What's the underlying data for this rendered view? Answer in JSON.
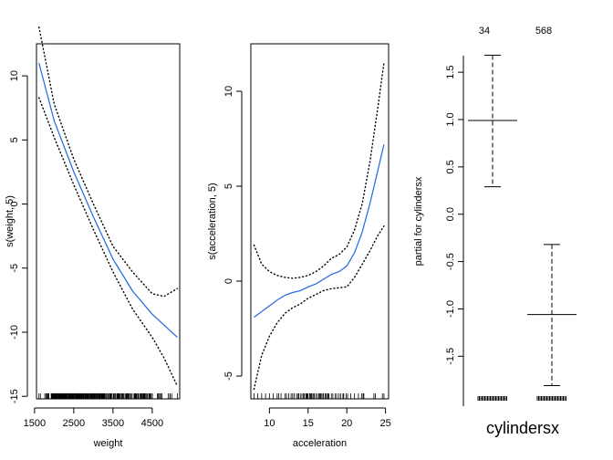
{
  "chart_data": [
    {
      "type": "line",
      "xlabel": "weight",
      "ylabel": "s(weight, 5)",
      "xlim": [
        1550,
        5200
      ],
      "ylim": [
        -15.2,
        12.5
      ],
      "xticks": [
        1500,
        2500,
        3500,
        4500
      ],
      "xtick_labels": [
        "1500",
        "2500",
        "3500",
        "4500"
      ],
      "yticks": [
        -15,
        -10,
        -5,
        0,
        5,
        10
      ],
      "ytick_labels": [
        "-15",
        "-10",
        "-5",
        "0",
        "5",
        "10"
      ],
      "grid": false,
      "series": [
        {
          "role": "fit",
          "style": "solid",
          "color": "#1f66e5",
          "x": [
            1613,
            2000,
            2500,
            3000,
            3500,
            4000,
            4500,
            5140
          ],
          "y": [
            11.0,
            6.5,
            2.5,
            -1.0,
            -4.3,
            -6.8,
            -8.6,
            -10.4
          ]
        },
        {
          "role": "upper",
          "style": "dotted",
          "color": "#000000",
          "x": [
            1613,
            2000,
            2500,
            3000,
            3500,
            4000,
            4500,
            4800,
            5140
          ],
          "y": [
            13.8,
            7.8,
            3.5,
            0.0,
            -3.3,
            -5.3,
            -7.0,
            -7.2,
            -6.6
          ]
        },
        {
          "role": "lower",
          "style": "dotted",
          "color": "#000000",
          "x": [
            1613,
            2000,
            2500,
            3000,
            3500,
            4000,
            4500,
            4800,
            5140
          ],
          "y": [
            8.3,
            5.2,
            1.5,
            -2.0,
            -5.3,
            -8.2,
            -10.4,
            -12.0,
            -14.2
          ]
        }
      ],
      "rug_x": [
        1613,
        1649,
        1760,
        1795,
        1800,
        1825,
        1834,
        1835,
        1845,
        1850,
        1867,
        1925,
        1937,
        1940,
        1950,
        1955,
        1963,
        1965,
        1968,
        1975,
        1980,
        1985,
        1990,
        1995,
        2000,
        2003,
        2019,
        2020,
        2025,
        2035,
        2045,
        2050,
        2055,
        2065,
        2070,
        2075,
        2085,
        2100,
        2110,
        2120,
        2125,
        2130,
        2135,
        2144,
        2155,
        2164,
        2171,
        2188,
        2190,
        2200,
        2205,
        2215,
        2220,
        2226,
        2228,
        2234,
        2245,
        2254,
        2264,
        2265,
        2278,
        2290,
        2295,
        2300,
        2310,
        2320,
        2330,
        2335,
        2340,
        2350,
        2370,
        2380,
        2390,
        2400,
        2405,
        2420,
        2430,
        2434,
        2450,
        2464,
        2472,
        2490,
        2500,
        2515,
        2525,
        2540,
        2556,
        2565,
        2575,
        2585,
        2595,
        2600,
        2615,
        2625,
        2635,
        2640,
        2648,
        2660,
        2670,
        2678,
        2690,
        2700,
        2711,
        2720,
        2735,
        2740,
        2745,
        2755,
        2774,
        2789,
        2795,
        2800,
        2815,
        2830,
        2835,
        2845,
        2855,
        2865,
        2870,
        2890,
        2900,
        2905,
        2910,
        2930,
        2945,
        2950,
        2957,
        2965,
        2979,
        2990,
        3003,
        3012,
        3021,
        3035,
        3039,
        3060,
        3070,
        3086,
        3102,
        3121,
        3139,
        3150,
        3155,
        3160,
        3169,
        3190,
        3193,
        3205,
        3210,
        3221,
        3230,
        3245,
        3250,
        3265,
        3270,
        3282,
        3288,
        3302,
        3329,
        3360,
        3365,
        3380,
        3410,
        3415,
        3425,
        3430,
        3432,
        3439,
        3445,
        3449,
        3465,
        3504,
        3520,
        3525,
        3535,
        3563,
        3570,
        3574,
        3605,
        3609,
        3620,
        3632,
        3645,
        3651,
        3664,
        3672,
        3693,
        3725,
        3730,
        3735,
        3755,
        3777,
        3781,
        3821,
        3830,
        3840,
        3850,
        3870,
        3880,
        3892,
        3897,
        3900,
        3907,
        3940,
        3962,
        3988,
        4036,
        4042,
        4054,
        4060,
        4080,
        4082,
        4098,
        4100,
        4129,
        4135,
        4140,
        4141,
        4154,
        4190,
        4209,
        4215,
        4237,
        4257,
        4274,
        4278,
        4294,
        4295,
        4312,
        4335,
        4360,
        4380,
        4385,
        4422,
        4425,
        4440,
        4457,
        4464,
        4499,
        4502,
        4633,
        4654,
        4668,
        4699,
        4732,
        4735,
        4746,
        4906,
        4951,
        4952,
        4955,
        4997,
        5140
      ]
    },
    {
      "type": "line",
      "xlabel": "acceleration",
      "ylabel": "s(acceleration, 5)",
      "xlim": [
        7.6,
        25.4
      ],
      "ylim": [
        -6.2,
        12.5
      ],
      "xticks": [
        10,
        15,
        20,
        25
      ],
      "xtick_labels": [
        "10",
        "15",
        "20",
        "25"
      ],
      "yticks": [
        -5,
        0,
        5,
        10
      ],
      "ytick_labels": [
        "-5",
        "0",
        "5",
        "10"
      ],
      "grid": false,
      "series": [
        {
          "role": "fit",
          "style": "solid",
          "color": "#1f66e5",
          "x": [
            8.0,
            9.0,
            10.0,
            11.0,
            12.0,
            13.0,
            14.0,
            15.0,
            16.0,
            17.0,
            18.0,
            19.0,
            20.0,
            21.0,
            22.0,
            23.0,
            24.0,
            24.8
          ],
          "y": [
            -1.9,
            -1.6,
            -1.3,
            -1.0,
            -0.75,
            -0.6,
            -0.5,
            -0.3,
            -0.15,
            0.1,
            0.35,
            0.5,
            0.8,
            1.5,
            2.6,
            4.1,
            5.8,
            7.2
          ]
        },
        {
          "role": "upper",
          "style": "dotted",
          "color": "#000000",
          "x": [
            8.0,
            9.0,
            10.0,
            11.0,
            12.0,
            13.0,
            14.0,
            15.0,
            16.0,
            17.0,
            18.0,
            19.0,
            20.0,
            21.0,
            22.0,
            23.0,
            24.0,
            24.8
          ],
          "y": [
            1.9,
            0.9,
            0.5,
            0.3,
            0.2,
            0.15,
            0.2,
            0.3,
            0.5,
            0.8,
            1.2,
            1.4,
            1.8,
            2.7,
            4.1,
            6.3,
            9.1,
            11.5
          ]
        },
        {
          "role": "lower",
          "style": "dotted",
          "color": "#000000",
          "x": [
            8.0,
            9.0,
            10.0,
            11.0,
            12.0,
            13.0,
            14.0,
            15.0,
            16.0,
            17.0,
            18.0,
            19.0,
            20.0,
            21.0,
            22.0,
            23.0,
            24.0,
            24.8
          ],
          "y": [
            -5.7,
            -3.9,
            -2.9,
            -2.2,
            -1.7,
            -1.4,
            -1.2,
            -0.9,
            -0.7,
            -0.5,
            -0.4,
            -0.35,
            -0.3,
            0.2,
            0.9,
            1.6,
            2.4,
            2.9
          ]
        }
      ],
      "rug_x": [
        8.0,
        8.5,
        9.0,
        9.5,
        10.0,
        10.5,
        11.0,
        11.2,
        11.5,
        12.0,
        12.2,
        12.5,
        12.8,
        13.0,
        13.2,
        13.5,
        13.7,
        13.8,
        14.0,
        14.2,
        14.4,
        14.5,
        14.7,
        14.8,
        14.9,
        15.0,
        15.2,
        15.3,
        15.4,
        15.5,
        15.7,
        15.8,
        16.0,
        16.2,
        16.4,
        16.5,
        16.6,
        16.7,
        16.9,
        17.0,
        17.2,
        17.3,
        17.5,
        17.6,
        17.7,
        18.0,
        18.2,
        18.5,
        18.7,
        19.0,
        19.2,
        19.5,
        19.6,
        19.9,
        20.1,
        20.5,
        21.0,
        21.5,
        21.9,
        22.1,
        22.2,
        23.5,
        23.7,
        24.6,
        24.8
      ]
    },
    {
      "type": "bar",
      "xlabel": "cylindersx",
      "ylabel": "partial for cylindersx",
      "ylim": [
        -1.95,
        1.8
      ],
      "yticks": [
        -1.5,
        -1.0,
        -0.5,
        0.0,
        0.5,
        1.0,
        1.5
      ],
      "ytick_labels": [
        "-1.5",
        "-1.0",
        "-0.5",
        "0.0",
        "0.5",
        "1.0",
        "1.5"
      ],
      "categories": [
        "34",
        "568"
      ],
      "values": [
        0.99,
        -1.06
      ],
      "upper": [
        1.68,
        -0.32
      ],
      "lower": [
        0.29,
        -1.81
      ],
      "grid": false
    }
  ]
}
